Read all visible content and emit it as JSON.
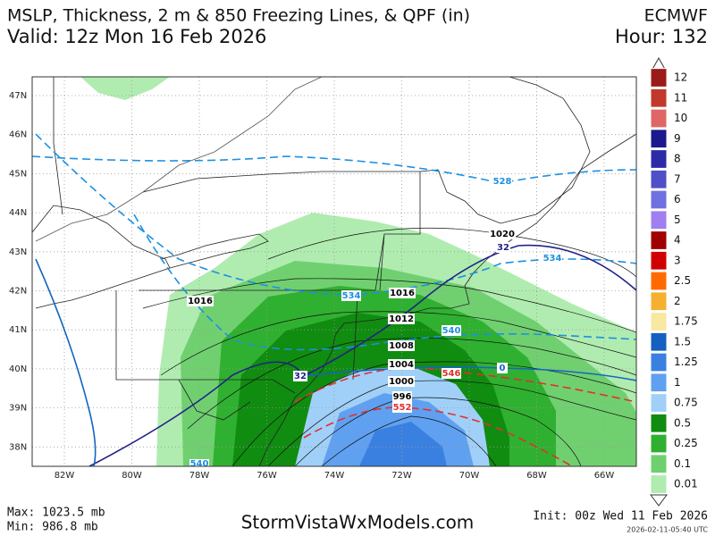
{
  "header": {
    "title": "MSLP, Thickness, 2 m & 850 Freezing Lines, & QPF (in)",
    "model": "ECMWF",
    "valid": "Valid: 12z Mon 16 Feb 2026",
    "hour": "Hour: 132"
  },
  "map": {
    "lat_labels": [
      "47N",
      "46N",
      "45N",
      "44N",
      "43N",
      "42N",
      "41N",
      "40N",
      "39N",
      "38N"
    ],
    "lon_labels": [
      "82W",
      "80W",
      "78W",
      "76W",
      "74W",
      "72W",
      "70W",
      "68W",
      "66W"
    ],
    "isobar_labels": [
      "1020",
      "1016",
      "1016",
      "1012",
      "1008",
      "1004",
      "1000",
      "996"
    ],
    "thickness_labels": [
      "528",
      "534",
      "534",
      "540",
      "540",
      "546",
      "552"
    ],
    "freezing_labels": [
      "32",
      "32",
      "0"
    ]
  },
  "legend": {
    "labels": [
      "12",
      "11",
      "10",
      "9",
      "8",
      "7",
      "6",
      "5",
      "4",
      "3",
      "2.5",
      "2",
      "1.75",
      "1.5",
      "1.25",
      "1",
      "0.75",
      "0.5",
      "0.25",
      "0.1",
      "0.01"
    ]
  },
  "footer": {
    "max": "Max: 1023.5 mb",
    "min": "Min: 986.8 mb",
    "site": "StormVistaWxModels.com",
    "init": "Init: 00z Wed 11 Feb 2026",
    "timestamp": "2026-02-11-05:40 UTC"
  }
}
